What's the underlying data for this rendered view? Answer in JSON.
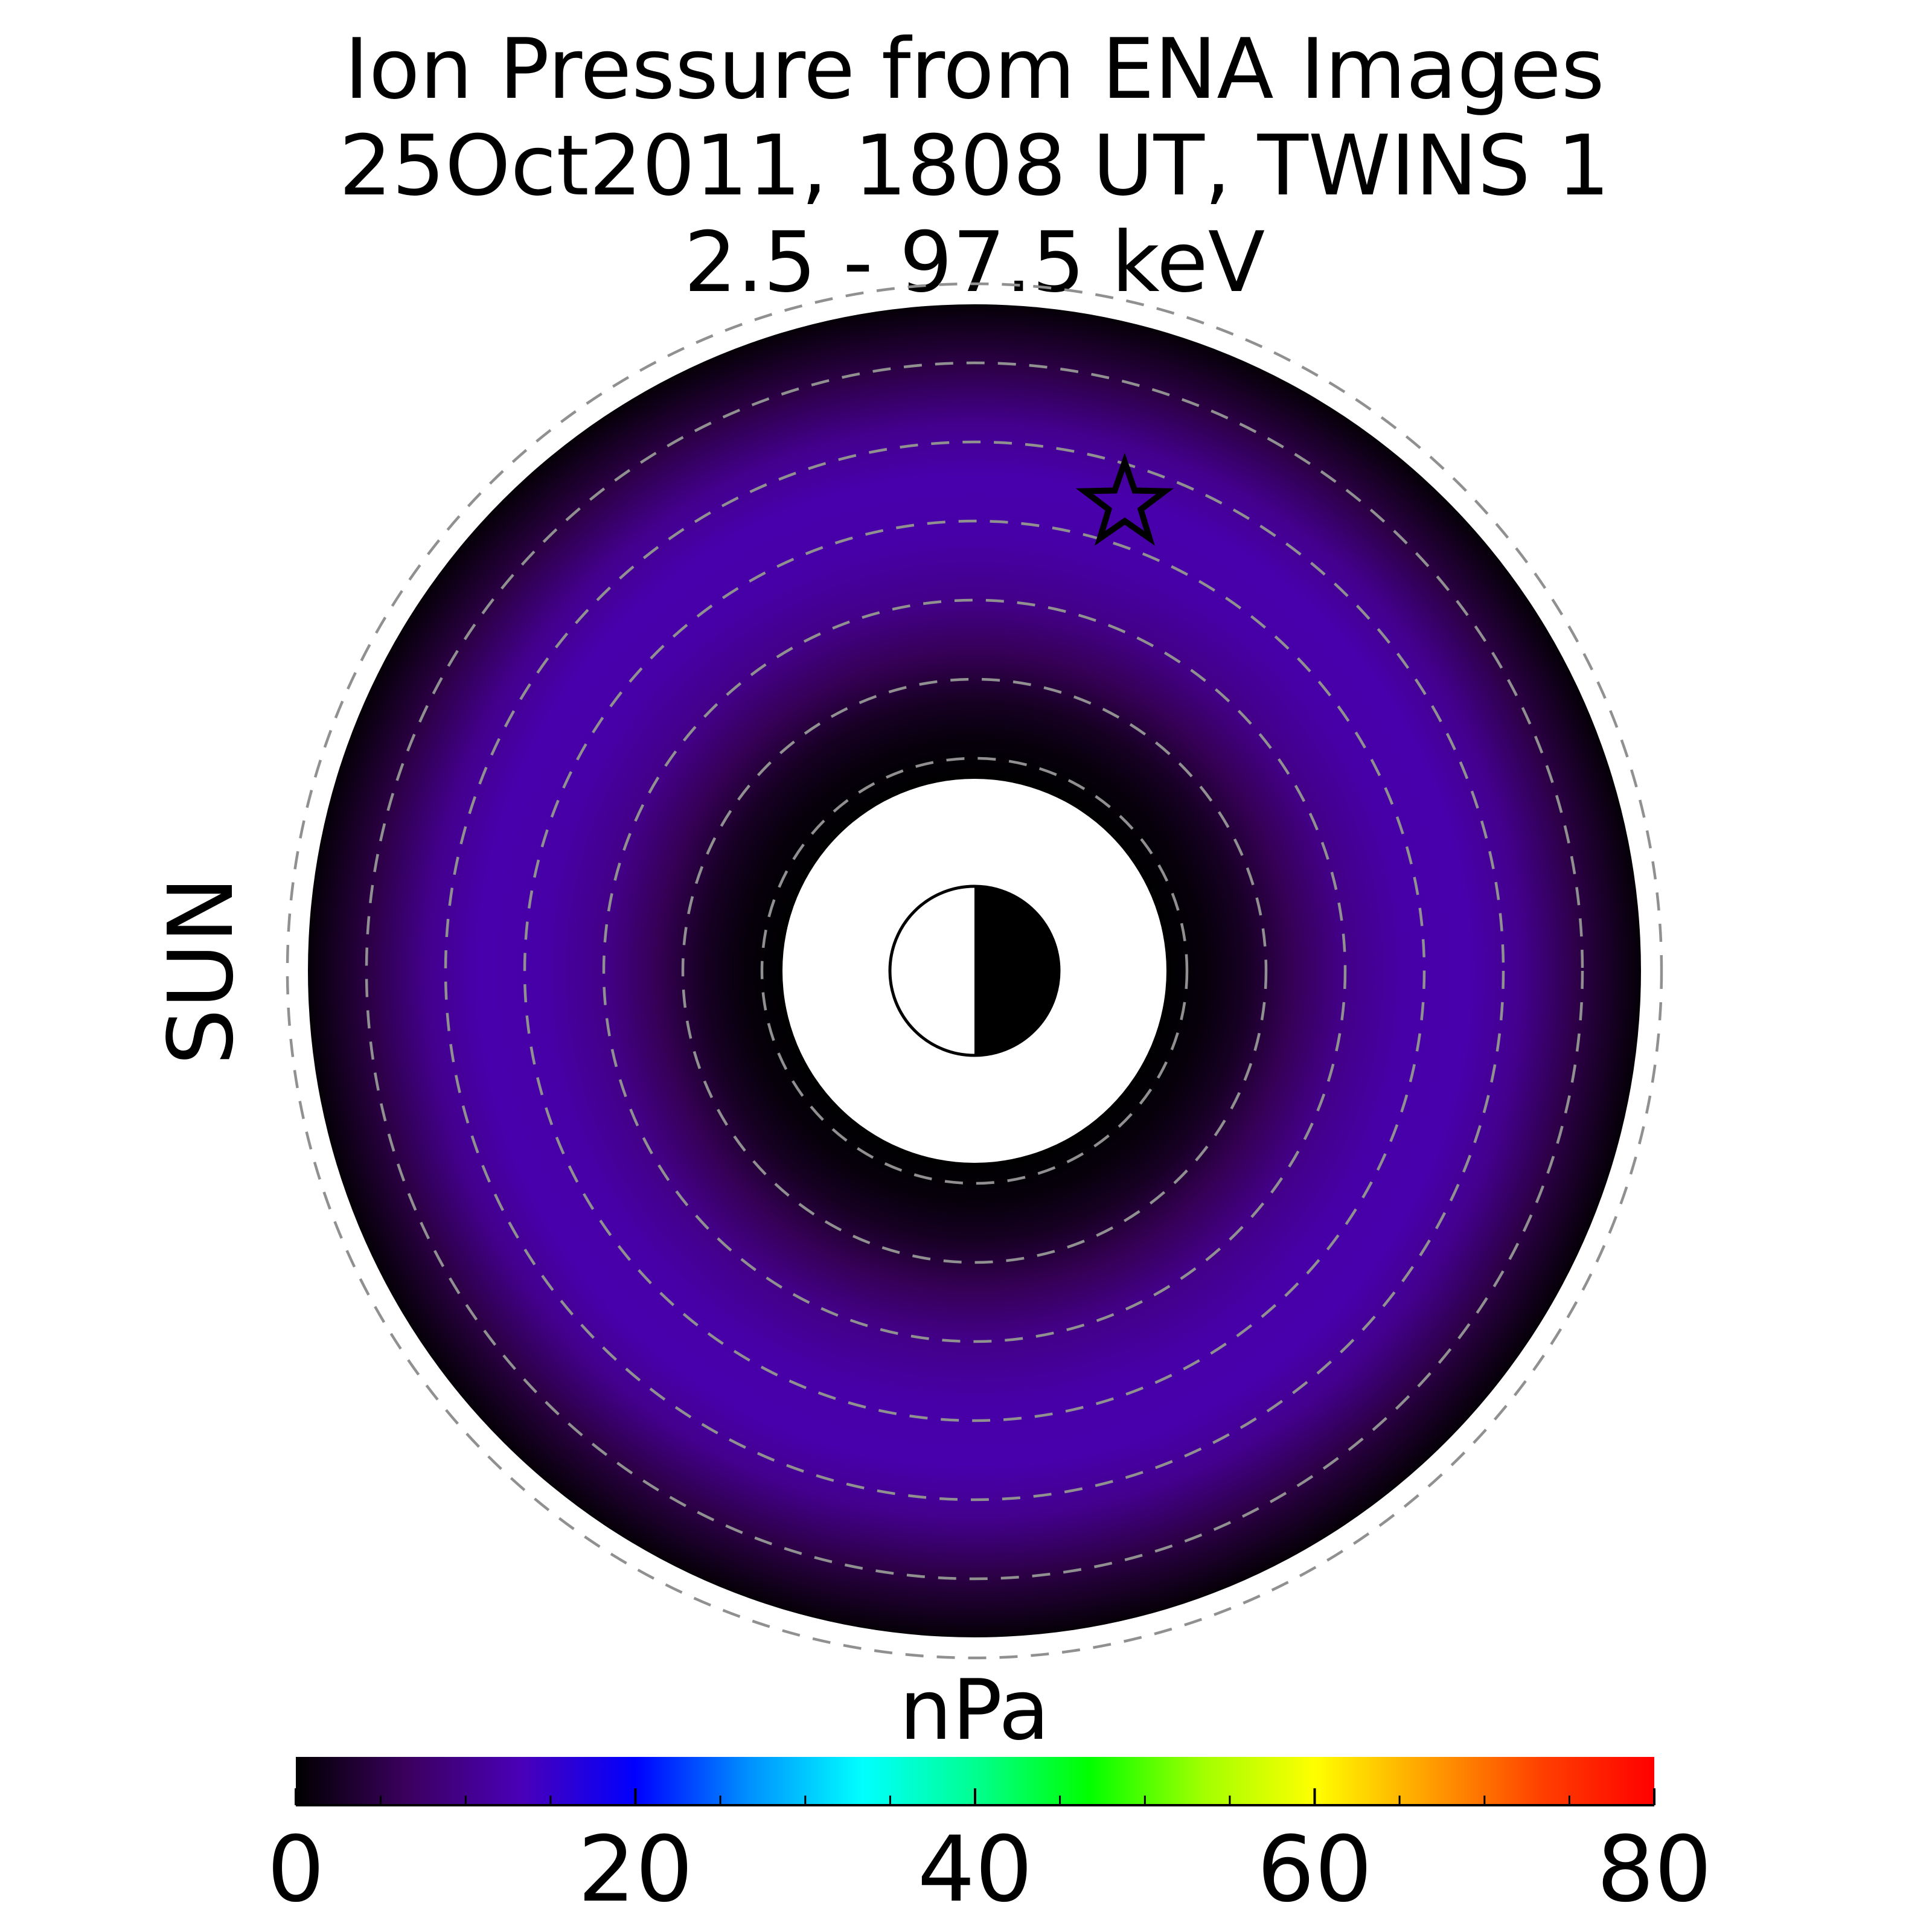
{
  "chart_data": {
    "type": "heatmap",
    "title_lines": [
      "Ion Pressure from  ENA Images",
      "25Oct2011, 1808 UT,  TWINS 1",
      "2.5 - 97.5 keV"
    ],
    "side_label": "SUN",
    "colorbar": {
      "label": "nPa",
      "range": [
        0,
        80
      ],
      "ticks": [
        0,
        20,
        40,
        60,
        80
      ],
      "tick_labels": [
        "0",
        "20",
        "40",
        "60",
        "80"
      ],
      "minor_step": 5,
      "colors": [
        "#000000",
        "#3c0060",
        "#4a00b8",
        "#0000ff",
        "#0090ff",
        "#00ffff",
        "#00ff90",
        "#00ff00",
        "#a0ff00",
        "#ffff00",
        "#ffa000",
        "#ff4000",
        "#ff0000"
      ]
    },
    "map": {
      "inner_radius_re": 2,
      "outer_radius_re": 8,
      "dashed_circles_re": [
        2,
        3,
        4,
        5,
        6,
        7,
        8
      ],
      "pressure_profile": {
        "r_re": [
          2,
          2.5,
          3,
          3.6,
          4.2,
          5.0,
          5.8,
          6.5,
          7.2,
          8
        ],
        "npa": [
          0,
          0.8,
          2.5,
          6,
          9.5,
          12,
          12.5,
          10,
          5,
          0.5
        ]
      },
      "spacecraft_marker": "star",
      "spacecraft_position_re": {
        "x": 1.9,
        "y": 5.9
      }
    },
    "colors": {
      "sun_label": "#f5a200",
      "dashed_ring": "#909090",
      "earth_night": "#000000",
      "earth_day": "#ffffff"
    }
  }
}
